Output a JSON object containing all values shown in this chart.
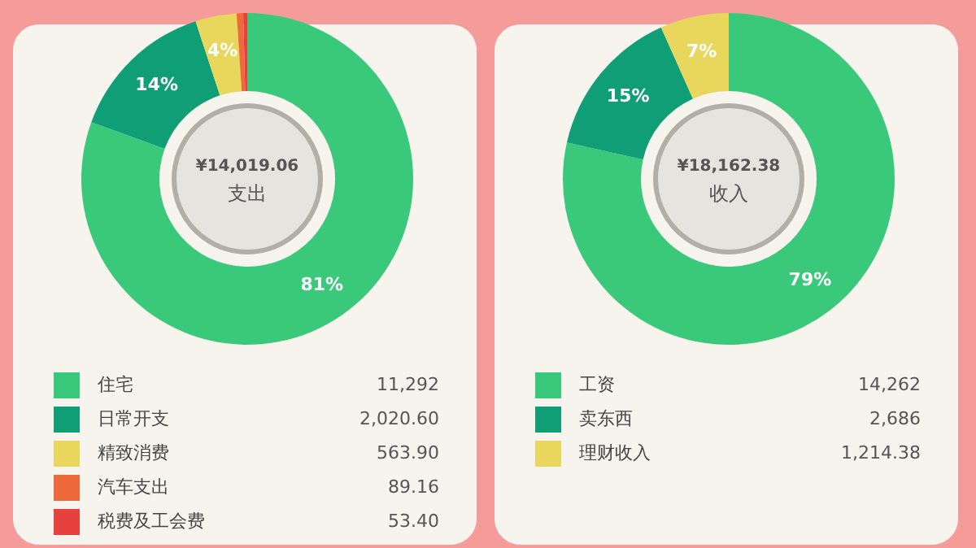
{
  "chart_data": [
    {
      "type": "donut",
      "title": "支出",
      "subtitle": "¥14,019.06",
      "legend": "bottom",
      "categories": [
        "住宅",
        "日常开支",
        "精致消费",
        "汽车支出",
        "税费及工会费"
      ],
      "values": [
        11292,
        2020.6,
        563.9,
        89.16,
        53.4
      ],
      "value_labels": [
        "11,292",
        "2,020.60",
        "563.90",
        "89.16",
        "53.40"
      ],
      "colors": [
        "#3ac97a",
        "#109e77",
        "#e9d65c",
        "#ef6a3a",
        "#e8403f"
      ],
      "annotations": [
        {
          "text": "81%",
          "x": "住宅"
        },
        {
          "text": "14%",
          "x": "日常开支"
        },
        {
          "text": "4%",
          "x": "精致消费"
        }
      ]
    },
    {
      "type": "donut",
      "title": "收入",
      "subtitle": "¥18,162.38",
      "legend": "bottom",
      "categories": [
        "工资",
        "卖东西",
        "理财收入"
      ],
      "values": [
        14262,
        2686,
        1214.38
      ],
      "value_labels": [
        "14,262",
        "2,686",
        "1,214.38"
      ],
      "colors": [
        "#3ac97a",
        "#109e77",
        "#e9d65c"
      ],
      "annotations": [
        {
          "text": "79%",
          "x": "工资"
        },
        {
          "text": "15%",
          "x": "卖东西"
        },
        {
          "text": "7%",
          "x": "理财收入"
        }
      ]
    }
  ]
}
